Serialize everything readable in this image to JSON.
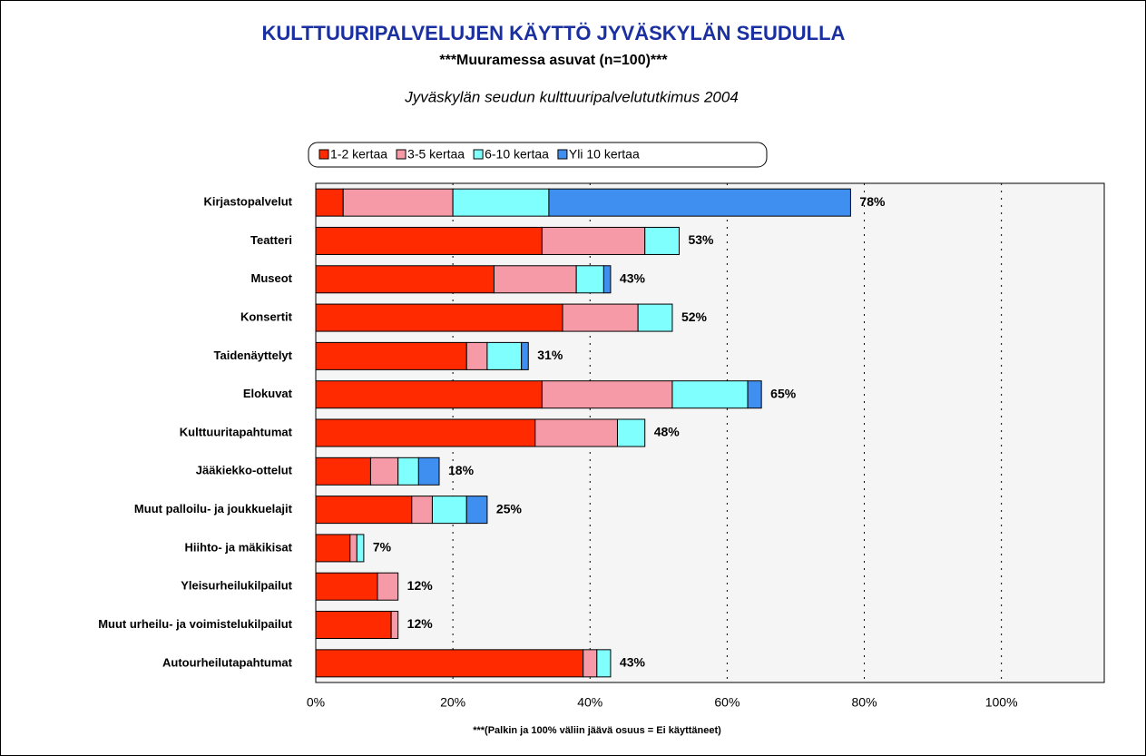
{
  "chart_data": {
    "type": "bar",
    "orientation": "horizontal",
    "stacked": true,
    "title": "KULTTUURIPALVELUJEN KÄYTTÖ JYVÄSKYLÄN SEUDULLA",
    "subtitle": "***Muuramessa asuvat (n=100)***",
    "source": "Jyväskylän seudun kulttuuripalvelututkimus 2004",
    "footnote": "***(Palkin ja 100% väliin jäävä osuus = Ei käyttäneet)",
    "categories": [
      "Kirjastopalvelut",
      "Teatteri",
      "Museot",
      "Konsertit",
      "Taidenäyttelyt",
      "Elokuvat",
      "Kulttuuritapahtumat",
      "Jääkiekko-ottelut",
      "Muut palloilu- ja joukkuelajit",
      "Hiihto- ja mäkikisat",
      "Yleisurheilukilpailut",
      "Muut urheilu- ja voimistelukilpailut",
      "Autourheilutapahtumat"
    ],
    "series": [
      {
        "name": "1-2 kertaa",
        "color": "#ff2a00",
        "values": [
          4,
          33,
          26,
          36,
          22,
          33,
          32,
          8,
          14,
          5,
          9,
          11,
          39
        ]
      },
      {
        "name": "3-5 kertaa",
        "color": "#f59aa6",
        "values": [
          16,
          15,
          12,
          11,
          3,
          19,
          12,
          4,
          3,
          1,
          3,
          1,
          2
        ]
      },
      {
        "name": "6-10 kertaa",
        "color": "#80ffff",
        "values": [
          14,
          5,
          4,
          5,
          5,
          11,
          4,
          3,
          5,
          1,
          0,
          0,
          2
        ]
      },
      {
        "name": "Yli 10 kertaa",
        "color": "#3f8ff0",
        "values": [
          44,
          0,
          1,
          0,
          1,
          2,
          0,
          3,
          3,
          0,
          0,
          0,
          0
        ]
      }
    ],
    "totals": [
      78,
      53,
      43,
      52,
      31,
      65,
      48,
      18,
      25,
      7,
      12,
      12,
      43
    ],
    "total_labels": [
      "78%",
      "53%",
      "43%",
      "52%",
      "31%",
      "65%",
      "48%",
      "18%",
      "25%",
      "7%",
      "12%",
      "12%",
      "43%"
    ],
    "xlim": [
      0,
      115
    ],
    "xticks": [
      {
        "value": 0,
        "label": "0%"
      },
      {
        "value": 20,
        "label": "20%"
      },
      {
        "value": 40,
        "label": "40%"
      },
      {
        "value": 60,
        "label": "60%"
      },
      {
        "value": 80,
        "label": "80%"
      },
      {
        "value": 100,
        "label": "100%"
      }
    ],
    "grid": true
  }
}
